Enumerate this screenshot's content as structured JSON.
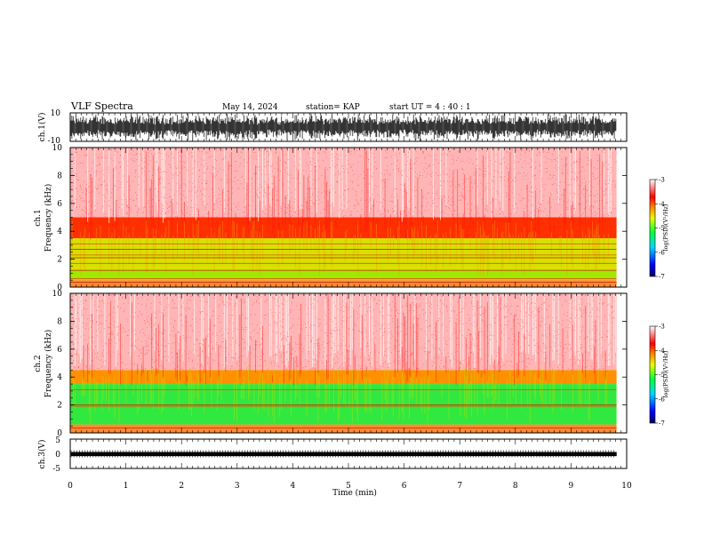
{
  "header": {
    "title": "VLF Spectra",
    "date": "May 14, 2024",
    "station": "station= KAP",
    "start_ut": "start  UT  =   4 : 40 : 1"
  },
  "chart_data": [
    {
      "type": "line",
      "name": "ch1-waveform",
      "ylabel": "ch.1(V)",
      "ylim": [
        -10,
        10
      ],
      "yticks": [
        "10",
        "-10"
      ],
      "xlim": [
        0,
        10
      ],
      "data_end_min": 9.82,
      "grid": false
    },
    {
      "type": "heatmap",
      "name": "ch1-spectrogram",
      "ylabel": "ch.1\nFrequency  (kHz)",
      "ylabel_lines": [
        "ch.1",
        "Frequency  (kHz)"
      ],
      "ylim": [
        0,
        10
      ],
      "yticks": [
        "0",
        "2",
        "4",
        "6",
        "8",
        "10"
      ],
      "xlim": [
        0,
        10
      ],
      "data_end_min": 9.82,
      "colorbar": {
        "label": "log(PSD)(V²/Hz)",
        "range": [
          -7,
          -3
        ],
        "ticks": [
          "-3",
          "-4",
          "-5",
          "-6",
          "-7"
        ]
      },
      "bands": [
        {
          "kHz": [
            0.0,
            0.5
          ],
          "level": "red/yellow lines"
        },
        {
          "kHz": [
            0.5,
            1.2
          ],
          "level": -4.9
        },
        {
          "kHz": [
            1.2,
            3.5
          ],
          "level": -4.6
        },
        {
          "kHz": [
            3.5,
            5.0
          ],
          "level": -4.0
        },
        {
          "kHz": [
            5.0,
            10.0
          ],
          "level": -3.5
        }
      ],
      "lines_kHz": [
        0.35,
        0.6,
        1.2,
        1.7,
        2.1,
        2.3,
        2.7,
        3.1
      ]
    },
    {
      "type": "heatmap",
      "name": "ch2-spectrogram",
      "ylabel": "ch.2\nFrequency  (kHz)",
      "ylabel_lines": [
        "ch.2",
        "Frequency  (kHz)"
      ],
      "ylim": [
        0,
        10
      ],
      "yticks": [
        "0",
        "2",
        "4",
        "6",
        "8",
        "10"
      ],
      "xlim": [
        0,
        10
      ],
      "data_end_min": 9.82,
      "colorbar": {
        "label": "log(PSD)(V²/Hz)",
        "range": [
          -7,
          -3
        ],
        "ticks": [
          "-3",
          "-4",
          "-5",
          "-6",
          "-7"
        ]
      },
      "bands": [
        {
          "kHz": [
            0.0,
            0.6
          ],
          "level": "red/yellow lines"
        },
        {
          "kHz": [
            0.6,
            3.5
          ],
          "level": -5.1
        },
        {
          "kHz": [
            3.5,
            4.5
          ],
          "level": -4.2
        },
        {
          "kHz": [
            4.5,
            10.0
          ],
          "level": -3.5
        }
      ],
      "lines_kHz": [
        0.35,
        1.9,
        2.0,
        3.1
      ]
    },
    {
      "type": "line",
      "name": "ch3-waveform",
      "ylabel": "ch.3(V)",
      "ylim": [
        -5,
        5
      ],
      "yticks": [
        "5",
        "0",
        "-5"
      ],
      "xlim": [
        0,
        10
      ],
      "data_end_min": 9.82,
      "band_V": [
        -0.8,
        0.6
      ],
      "grid": false
    }
  ],
  "xaxis": {
    "label": "Time  (min)",
    "ticks": [
      "0",
      "1",
      "2",
      "3",
      "4",
      "5",
      "6",
      "7",
      "8",
      "9",
      "10"
    ]
  }
}
